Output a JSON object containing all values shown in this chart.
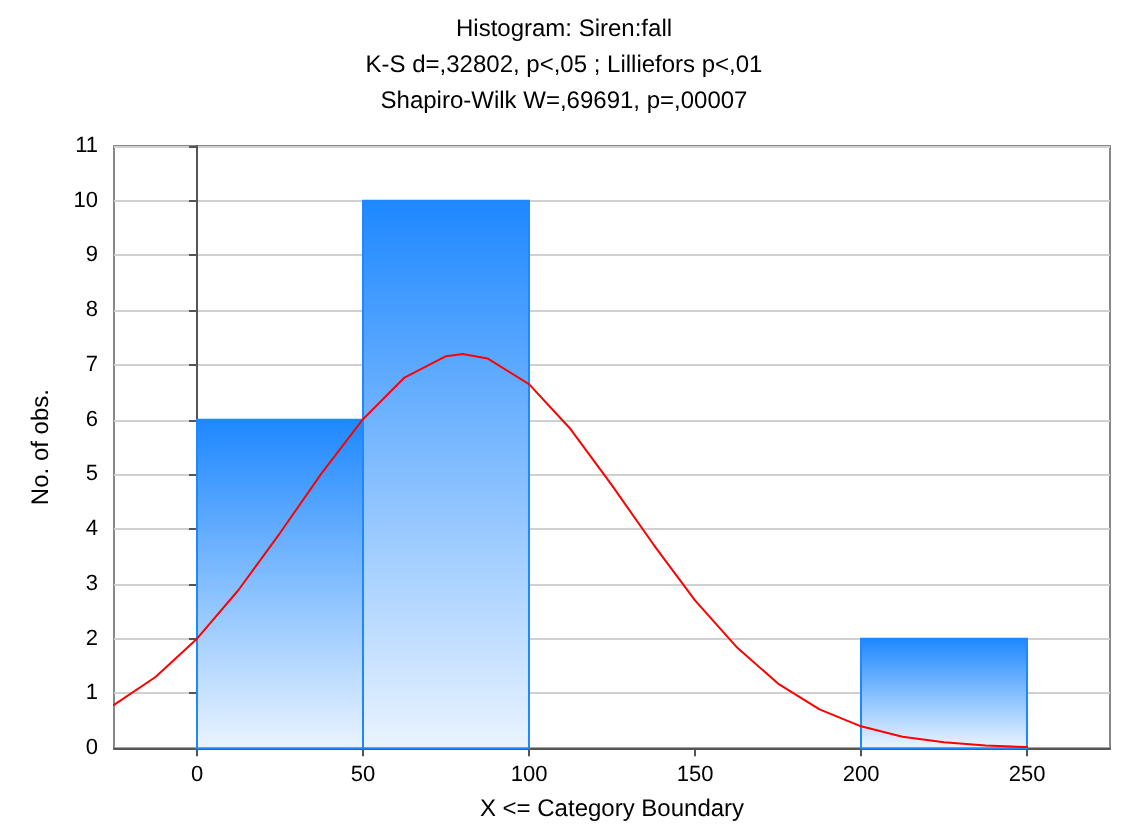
{
  "chart_data": {
    "type": "histogram",
    "title": "Histogram: Siren:fall",
    "subtitle": "K-S d=,32802, p<,05 ; Lilliefors p<,01\nShapiro-Wilk W=,69691, p=,00007",
    "xlabel": "X <= Category Boundary",
    "ylabel": "No. of obs.",
    "bins": [
      0,
      50,
      100,
      150,
      200,
      250
    ],
    "values": [
      6,
      10,
      0,
      0,
      2
    ],
    "color": "#1e88ff",
    "series": [
      {
        "type": "line",
        "color": "#ff0000",
        "x": [
          -25,
          -12.5,
          0,
          12.5,
          25,
          37.5,
          50,
          62.5,
          75,
          80,
          87.5,
          100,
          112.5,
          125,
          137.5,
          150,
          162.5,
          175,
          187.5,
          200,
          212.5,
          225,
          237.5,
          250
        ],
        "values": [
          0.79,
          1.3,
          2.0,
          2.89,
          3.93,
          5.02,
          6.01,
          6.77,
          7.16,
          7.2,
          7.12,
          6.65,
          5.83,
          4.8,
          3.72,
          2.7,
          1.85,
          1.18,
          0.71,
          0.4,
          0.21,
          0.11,
          0.05,
          0.02
        ]
      }
    ],
    "xlim": [
      -25,
      275
    ],
    "xticks": [
      0,
      50,
      100,
      150,
      200,
      250
    ],
    "ylim": [
      0,
      11
    ],
    "yticks": [
      0,
      1,
      2,
      3,
      4,
      5,
      6,
      7,
      8,
      9,
      10,
      11
    ],
    "grid": "y",
    "marker": "none",
    "line_style": "solid"
  }
}
